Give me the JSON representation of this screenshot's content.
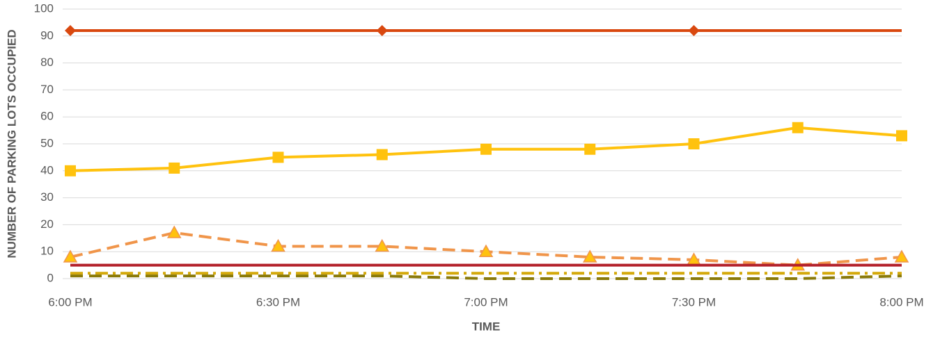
{
  "chart_data": {
    "type": "line",
    "xlabel": "TIME",
    "ylabel": "NUMBER OF PARKING LOTS OCCUPIED",
    "categories": [
      "6:00 PM",
      null,
      "6:30 PM",
      null,
      "7:00 PM",
      null,
      "7:30 PM",
      null,
      "8:00 PM"
    ],
    "ylim": [
      0,
      100
    ],
    "yticks": [
      0,
      10,
      20,
      30,
      40,
      50,
      60,
      70,
      80,
      90,
      100
    ],
    "grid": true,
    "series": [
      {
        "color": "#d9480f",
        "dash": "solid",
        "marker": "diamond",
        "marker_every": 3,
        "values": [
          92,
          92,
          92,
          92,
          92,
          92,
          92,
          92,
          92
        ]
      },
      {
        "color": "#ffc20e",
        "dash": "solid",
        "marker": "square",
        "marker_every": 1,
        "values": [
          40,
          41,
          45,
          46,
          48,
          48,
          50,
          56,
          53
        ]
      },
      {
        "color": "#f0954a",
        "dash": "dashed",
        "marker": "triangle",
        "marker_every": 1,
        "values": [
          8,
          17,
          12,
          12,
          10,
          8,
          7,
          5,
          8
        ]
      },
      {
        "color": "#b3202a",
        "dash": "solid",
        "marker": null,
        "marker_every": 1,
        "values": [
          5,
          5,
          5,
          5,
          5,
          5,
          5,
          5,
          5
        ]
      },
      {
        "color": "#d4a90b",
        "dash": "dashdot",
        "marker": null,
        "marker_every": 1,
        "values": [
          2,
          2,
          2,
          2,
          2,
          2,
          2,
          2,
          2
        ]
      },
      {
        "color": "#8a7a0a",
        "dash": "dashed",
        "marker": null,
        "marker_every": 1,
        "values": [
          1,
          1,
          1,
          1,
          0,
          0,
          0,
          0,
          1
        ]
      }
    ]
  }
}
